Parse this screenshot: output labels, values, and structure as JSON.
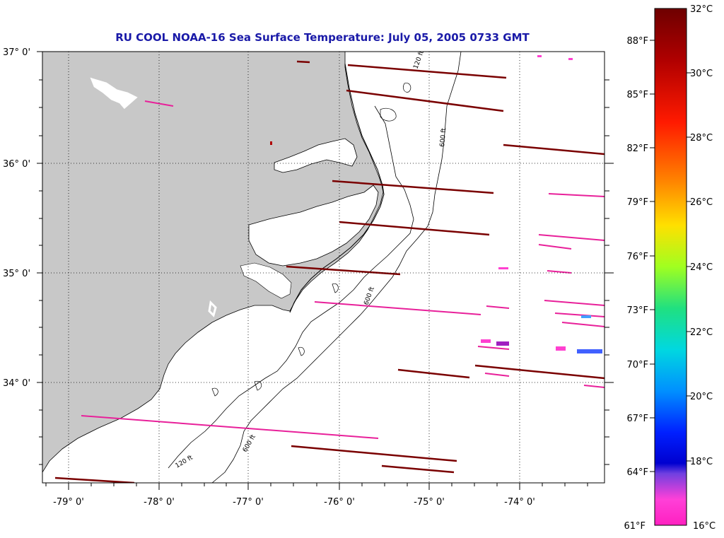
{
  "title": "RU COOL  NOAA-16  Sea Surface Temperature:  July 05, 2005 0733 GMT",
  "latitude_labels": [
    "37° 0'",
    "36° 0'",
    "35° 0'",
    "34° 0'"
  ],
  "longitude_labels": [
    "-79° 0'",
    "-78° 0'",
    "-77° 0'",
    "-76° 0'",
    "-75° 0'",
    "-74° 0'"
  ],
  "contour_labels": [
    "120 ft",
    "600 ft"
  ],
  "colorbar": {
    "celsius_labels": [
      "32°C",
      "30°C",
      "28°C",
      "26°C",
      "24°C",
      "22°C",
      "20°C",
      "18°C",
      "16°C"
    ],
    "fahrenheit_labels": [
      "88°F",
      "85°F",
      "82°F",
      "79°F",
      "76°F",
      "73°F",
      "70°F",
      "67°F",
      "64°F",
      "61°F"
    ],
    "colors": [
      "#7a0000",
      "#b00000",
      "#ff0000",
      "#ff7a00",
      "#ffd000",
      "#e0ff00",
      "#80ff20",
      "#20e080",
      "#00e0d0",
      "#00a0ff",
      "#0040ff",
      "#0000e0",
      "#8040e0",
      "#ff40d0",
      "#ff20c0"
    ]
  },
  "colors": {
    "land": "#c8c8c8",
    "title": "#1a1aa8",
    "warm_stripe": "#7a0000",
    "cool_stripe": "#e8209a"
  }
}
